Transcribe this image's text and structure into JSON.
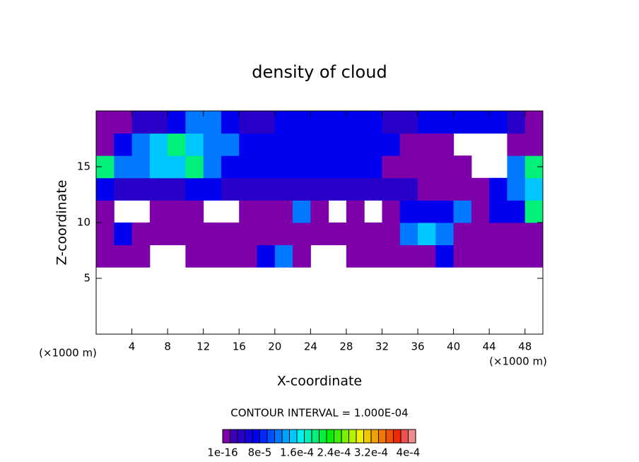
{
  "chart_data": {
    "type": "contour",
    "title": "density of cloud",
    "x_label": "X-coordinate",
    "y_label": "Z-coordinate",
    "x_unit": "(×1000 m)",
    "y_unit": "(×1000 m)",
    "contour_interval": "CONTOUR INTERVAL = 1.000E-04",
    "xlim": [
      0,
      50
    ],
    "ylim": [
      0,
      20
    ],
    "xticks": [
      4,
      8,
      12,
      16,
      20,
      24,
      28,
      32,
      36,
      40,
      44,
      48
    ],
    "yticks": [
      5,
      10,
      15
    ],
    "x": [
      1,
      3,
      5,
      7,
      9,
      11,
      13,
      15,
      17,
      19,
      21,
      23,
      25,
      27,
      29,
      31,
      33,
      35,
      37,
      39,
      41,
      43,
      45,
      47,
      49
    ],
    "y": [
      7,
      9,
      11,
      13,
      15,
      17,
      19
    ],
    "z": [
      [
        1e-05,
        1e-05,
        1e-05,
        null,
        null,
        1e-05,
        1e-05,
        1e-05,
        1e-05,
        7e-05,
        0.00012,
        1e-05,
        null,
        null,
        1e-05,
        1e-05,
        1e-05,
        1e-05,
        1e-05,
        7e-05,
        1e-05,
        1e-05,
        1e-05,
        1e-05,
        1e-05
      ],
      [
        1e-05,
        7e-05,
        1e-05,
        1e-05,
        1e-05,
        1e-05,
        1e-05,
        1e-05,
        1e-05,
        1e-05,
        1e-05,
        1e-05,
        1e-05,
        1e-05,
        1e-05,
        1e-05,
        1e-05,
        0.00012,
        0.00016,
        0.00012,
        1e-05,
        1e-05,
        1e-05,
        1e-05,
        1e-05
      ],
      [
        1e-05,
        null,
        null,
        1e-05,
        1e-05,
        1e-05,
        null,
        null,
        1e-05,
        1e-05,
        1e-05,
        0.00012,
        1e-05,
        null,
        1e-05,
        null,
        1e-05,
        7e-05,
        7e-05,
        7e-05,
        0.00012,
        1e-05,
        7e-05,
        7e-05,
        0.0002
      ],
      [
        7e-05,
        4e-05,
        4e-05,
        4e-05,
        4e-05,
        7e-05,
        7e-05,
        4e-05,
        4e-05,
        4e-05,
        4e-05,
        4e-05,
        4e-05,
        4e-05,
        4e-05,
        4e-05,
        4e-05,
        4e-05,
        1e-05,
        1e-05,
        1e-05,
        1e-05,
        7e-05,
        0.00012,
        0.00016
      ],
      [
        0.0002,
        0.00012,
        0.00012,
        0.00016,
        0.00016,
        0.0002,
        0.00012,
        7e-05,
        7e-05,
        7e-05,
        7e-05,
        7e-05,
        7e-05,
        7e-05,
        7e-05,
        7e-05,
        1e-05,
        1e-05,
        1e-05,
        1e-05,
        1e-05,
        null,
        null,
        0.00012,
        0.0002
      ],
      [
        1e-05,
        7e-05,
        0.00012,
        0.00016,
        0.0002,
        0.00016,
        0.00012,
        0.00012,
        7e-05,
        7e-05,
        7e-05,
        7e-05,
        7e-05,
        7e-05,
        7e-05,
        7e-05,
        7e-05,
        1e-05,
        1e-05,
        1e-05,
        null,
        null,
        null,
        1e-05,
        1e-05
      ],
      [
        1e-05,
        1e-05,
        4e-05,
        4e-05,
        7e-05,
        0.00012,
        0.00012,
        7e-05,
        4e-05,
        4e-05,
        7e-05,
        7e-05,
        7e-05,
        7e-05,
        7e-05,
        7e-05,
        4e-05,
        4e-05,
        7e-05,
        7e-05,
        7e-05,
        7e-05,
        7e-05,
        4e-05,
        1e-05
      ]
    ],
    "clim": [
      1e-16,
      0.000416
    ],
    "colors": [
      "#7d00a8",
      "#3c00b4",
      "#2800c8",
      "#1400dc",
      "#0000f0",
      "#0028ff",
      "#0050ff",
      "#0078ff",
      "#00a0ff",
      "#00c8ff",
      "#00f0f0",
      "#00f0b4",
      "#00f078",
      "#00f03c",
      "#00f000",
      "#3cf000",
      "#78f000",
      "#b4f000",
      "#f0f000",
      "#f0c800",
      "#f0a000",
      "#f07800",
      "#f05000",
      "#f02800",
      "#f05050",
      "#f08c8c"
    ],
    "colorbar_ticks": [
      {
        "value": 1e-16,
        "label": "1e-16"
      },
      {
        "value": 8e-05,
        "label": "8e-5"
      },
      {
        "value": 0.00016,
        "label": "1.6e-4"
      },
      {
        "value": 0.00024,
        "label": "2.4e-4"
      },
      {
        "value": 0.00032,
        "label": "3.2e-4"
      },
      {
        "value": 0.0004,
        "label": "4e-4"
      }
    ]
  }
}
